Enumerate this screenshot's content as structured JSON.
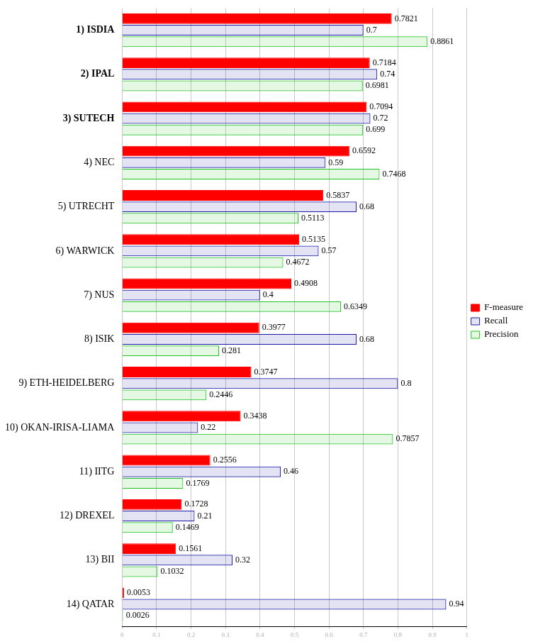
{
  "chart_data": {
    "type": "bar",
    "orientation": "horizontal",
    "categories": [
      "1) ISDIA",
      "2) IPAL",
      "3) SUTECH",
      "4) NEC",
      "5) UTRECHT",
      "6) WARWICK",
      "7) NUS",
      "8) ISIK",
      "9) ETH-HEIDELBERG",
      "10) OKAN-IRISA-LIAMA",
      "11) IITG",
      "12) DREXEL",
      "13) BII",
      "14) QATAR"
    ],
    "series": [
      {
        "name": "F-measure",
        "color": "#ff0000",
        "values": [
          0.7821,
          0.7184,
          0.7094,
          0.6592,
          0.5837,
          0.5135,
          0.4908,
          0.3977,
          0.3747,
          0.3438,
          0.2556,
          0.1728,
          0.1561,
          0.0053
        ]
      },
      {
        "name": "Recall",
        "color": "#1a1aa6",
        "values": [
          0.7,
          0.74,
          0.72,
          0.59,
          0.68,
          0.57,
          0.4,
          0.68,
          0.8,
          0.22,
          0.46,
          0.21,
          0.32,
          0.94
        ]
      },
      {
        "name": "Precision",
        "color": "#22c322",
        "values": [
          0.8861,
          0.6981,
          0.699,
          0.7468,
          0.5113,
          0.4672,
          0.6349,
          0.281,
          0.2446,
          0.7857,
          0.1769,
          0.1469,
          0.1032,
          0.0026
        ]
      }
    ],
    "xlim": [
      0,
      1
    ],
    "xticks": [
      0,
      0.1,
      0.2,
      0.3,
      0.4,
      0.5,
      0.6,
      0.7,
      0.8,
      0.9,
      1
    ],
    "grid": true,
    "legend": "right",
    "data_labels": true
  }
}
